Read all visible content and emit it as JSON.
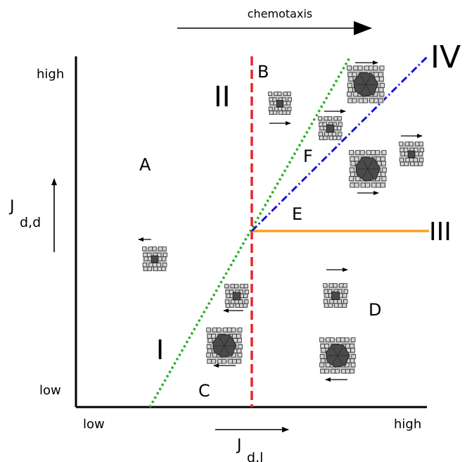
{
  "header": {
    "chemotaxis": "chemotaxis"
  },
  "axes": {
    "y_high": "high",
    "y_low": "low",
    "x_low": "low",
    "x_high": "high",
    "y_label_main": "J",
    "y_label_sub": "d,d",
    "x_label_main": "J",
    "x_label_sub": "d,l"
  },
  "regions": {
    "A": "A",
    "B": "B",
    "C": "C",
    "D": "D",
    "E": "E",
    "F": "F"
  },
  "lines": {
    "I": {
      "label": "I",
      "color": "#22b022",
      "style": "dotted"
    },
    "II": {
      "label": "II",
      "color": "#e8252b",
      "style": "dashed"
    },
    "III": {
      "label": "III",
      "color": "#f5a31a",
      "style": "solid"
    },
    "IV": {
      "label": "IV",
      "color": "#1414d6",
      "style": "dash-dot"
    }
  },
  "cluster_icons": [
    {
      "name": "single-cell-cluster",
      "direction": "left"
    },
    {
      "name": "single-cell-cluster",
      "direction": "right"
    },
    {
      "name": "small-cell-cluster",
      "direction": "right"
    },
    {
      "name": "large-cell-cluster",
      "direction": "right"
    },
    {
      "name": "large-cell-cluster",
      "direction": "right"
    },
    {
      "name": "single-cell-cluster",
      "direction": "right"
    },
    {
      "name": "small-cell-cluster",
      "direction": "left"
    },
    {
      "name": "large-cell-cluster",
      "direction": "left"
    },
    {
      "name": "small-cell-cluster",
      "direction": "right"
    },
    {
      "name": "large-cell-cluster",
      "direction": "left"
    }
  ]
}
